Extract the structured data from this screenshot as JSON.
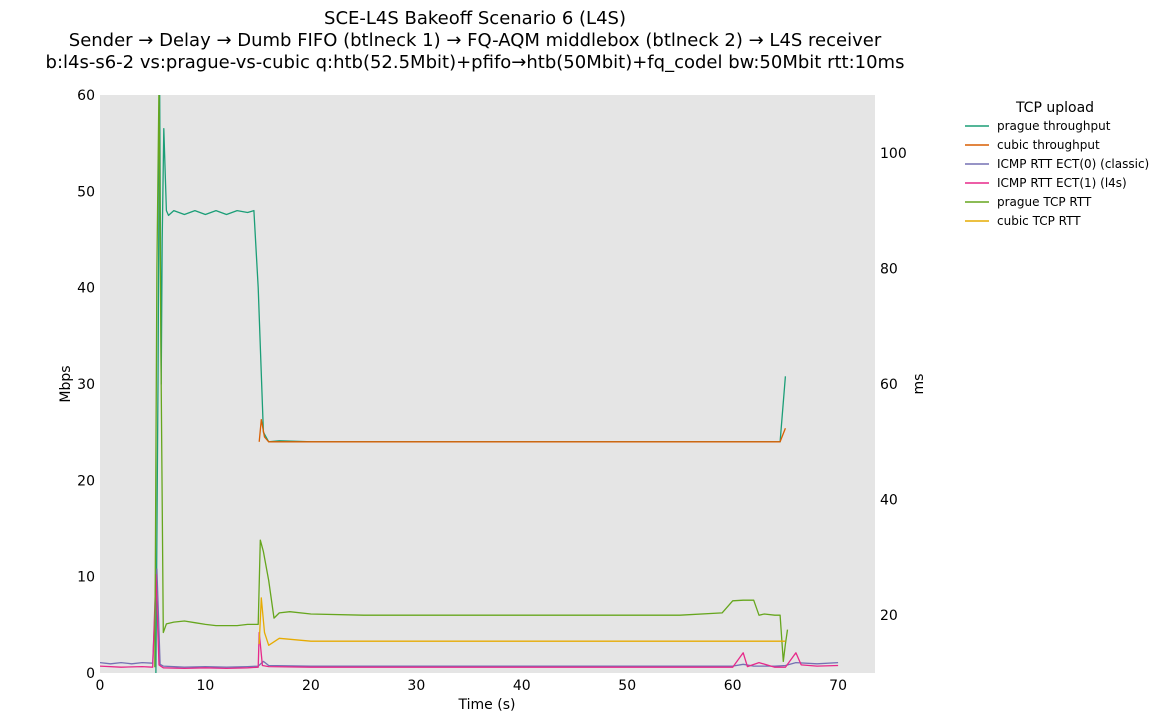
{
  "chart_data": {
    "type": "line",
    "title": [
      "SCE-L4S Bakeoff Scenario 6 (L4S)",
      "Sender → Delay → Dumb FIFO (btlneck 1) → FQ-AQM middlebox (btlneck 2) → L4S receiver",
      "b:l4s-s6-2 vs:prague-vs-cubic q:htb(52.5Mbit)+pfifo→htb(50Mbit)+fq_codel bw:50Mbit rtt:10ms"
    ],
    "xlabel": "Time (s)",
    "ylabel_left": "Mbps",
    "ylabel_right": "ms",
    "xlim": [
      0,
      73.5
    ],
    "ylim_left": [
      0,
      60
    ],
    "ylim_right": [
      10,
      110
    ],
    "xticks": [
      0,
      10,
      20,
      30,
      40,
      50,
      60,
      70
    ],
    "yticks_left": [
      0,
      10,
      20,
      30,
      40,
      50,
      60
    ],
    "yticks_right": [
      20,
      40,
      60,
      80,
      100
    ],
    "background": "#e5e5e5",
    "grid": false,
    "legend": {
      "title": "TCP upload",
      "placement": "outside-right"
    },
    "series": [
      {
        "name": "prague throughput",
        "axis": "left",
        "color": "#1b9e77",
        "points": [
          [
            5.3,
            0
          ],
          [
            5.5,
            30
          ],
          [
            5.65,
            62
          ],
          [
            5.8,
            30
          ],
          [
            5.9,
            45
          ],
          [
            6.05,
            56.5
          ],
          [
            6.3,
            48
          ],
          [
            6.5,
            47.5
          ],
          [
            7,
            48
          ],
          [
            8,
            47.6
          ],
          [
            9,
            48
          ],
          [
            10,
            47.6
          ],
          [
            11,
            48
          ],
          [
            12,
            47.6
          ],
          [
            13,
            48
          ],
          [
            14,
            47.8
          ],
          [
            14.6,
            48
          ],
          [
            15,
            40
          ],
          [
            15.5,
            25
          ],
          [
            16,
            24
          ],
          [
            17,
            24.1
          ],
          [
            20,
            24
          ],
          [
            25,
            24
          ],
          [
            30,
            24
          ],
          [
            35,
            24
          ],
          [
            40,
            24
          ],
          [
            45,
            24
          ],
          [
            50,
            24
          ],
          [
            55,
            24
          ],
          [
            60,
            24
          ],
          [
            64,
            24
          ],
          [
            64.5,
            24
          ],
          [
            65,
            30.8
          ]
        ]
      },
      {
        "name": "cubic throughput",
        "axis": "left",
        "color": "#d95f02",
        "points": [
          [
            15.1,
            24
          ],
          [
            15.3,
            26.3
          ],
          [
            15.6,
            24.5
          ],
          [
            16,
            24
          ],
          [
            17,
            24
          ],
          [
            20,
            24
          ],
          [
            25,
            24
          ],
          [
            30,
            24
          ],
          [
            35,
            24
          ],
          [
            40,
            24
          ],
          [
            45,
            24
          ],
          [
            50,
            24
          ],
          [
            55,
            24
          ],
          [
            60,
            24
          ],
          [
            64,
            24
          ],
          [
            64.5,
            24
          ],
          [
            65,
            25.4
          ]
        ]
      },
      {
        "name": "ICMP RTT ECT(0) (classic)",
        "axis": "right",
        "color": "#7570b3",
        "points": [
          [
            0,
            11.8
          ],
          [
            1,
            11.6
          ],
          [
            2,
            11.8
          ],
          [
            3,
            11.6
          ],
          [
            4,
            11.8
          ],
          [
            5,
            11.7
          ],
          [
            5.4,
            28
          ],
          [
            5.7,
            11.5
          ],
          [
            6,
            11.2
          ],
          [
            8,
            11
          ],
          [
            10,
            11.1
          ],
          [
            12,
            11
          ],
          [
            14,
            11.1
          ],
          [
            15,
            11.2
          ],
          [
            15.5,
            12
          ],
          [
            16,
            11.3
          ],
          [
            20,
            11.2
          ],
          [
            25,
            11.2
          ],
          [
            30,
            11.2
          ],
          [
            35,
            11.2
          ],
          [
            40,
            11.2
          ],
          [
            45,
            11.2
          ],
          [
            50,
            11.2
          ],
          [
            55,
            11.2
          ],
          [
            60,
            11.2
          ],
          [
            61,
            11.5
          ],
          [
            62,
            11.2
          ],
          [
            64,
            11.2
          ],
          [
            65,
            11.3
          ],
          [
            66,
            11.8
          ],
          [
            68,
            11.6
          ],
          [
            70,
            11.8
          ]
        ]
      },
      {
        "name": "ICMP RTT ECT(1) (l4s)",
        "axis": "right",
        "color": "#e7298a",
        "points": [
          [
            0,
            11.2
          ],
          [
            2,
            11
          ],
          [
            4,
            11.1
          ],
          [
            5,
            11
          ],
          [
            5.3,
            27
          ],
          [
            5.6,
            11.4
          ],
          [
            6,
            10.9
          ],
          [
            8,
            10.8
          ],
          [
            10,
            10.9
          ],
          [
            12,
            10.8
          ],
          [
            14,
            10.9
          ],
          [
            15,
            11
          ],
          [
            15.1,
            17
          ],
          [
            15.4,
            11.3
          ],
          [
            16,
            11.1
          ],
          [
            20,
            11
          ],
          [
            25,
            11
          ],
          [
            30,
            11
          ],
          [
            35,
            11
          ],
          [
            40,
            11
          ],
          [
            45,
            11
          ],
          [
            50,
            11
          ],
          [
            55,
            11
          ],
          [
            60,
            11
          ],
          [
            61,
            13.5
          ],
          [
            61.4,
            11.1
          ],
          [
            62.5,
            11.8
          ],
          [
            64,
            11
          ],
          [
            65,
            11
          ],
          [
            66,
            13.5
          ],
          [
            66.5,
            11.4
          ],
          [
            68,
            11.2
          ],
          [
            70,
            11.3
          ]
        ]
      },
      {
        "name": "prague TCP RTT",
        "axis": "right",
        "color": "#66a61e",
        "points": [
          [
            5.2,
            11
          ],
          [
            5.4,
            80
          ],
          [
            5.6,
            112
          ],
          [
            5.8,
            60
          ],
          [
            6,
            17
          ],
          [
            6.3,
            18.5
          ],
          [
            7,
            18.8
          ],
          [
            8,
            19
          ],
          [
            9,
            18.7
          ],
          [
            10,
            18.4
          ],
          [
            11,
            18.2
          ],
          [
            12,
            18.2
          ],
          [
            13,
            18.2
          ],
          [
            14,
            18.4
          ],
          [
            15,
            18.4
          ],
          [
            15.2,
            33
          ],
          [
            15.5,
            31
          ],
          [
            16,
            26
          ],
          [
            16.5,
            19.5
          ],
          [
            17,
            20.4
          ],
          [
            18,
            20.6
          ],
          [
            20,
            20.2
          ],
          [
            25,
            20
          ],
          [
            30,
            20
          ],
          [
            35,
            20
          ],
          [
            40,
            20
          ],
          [
            45,
            20
          ],
          [
            50,
            20
          ],
          [
            55,
            20
          ],
          [
            59,
            20.4
          ],
          [
            60,
            22.5
          ],
          [
            61,
            22.6
          ],
          [
            62,
            22.6
          ],
          [
            62.5,
            20
          ],
          [
            63,
            20.2
          ],
          [
            64,
            20
          ],
          [
            64.5,
            20
          ],
          [
            64.8,
            12
          ],
          [
            65,
            15
          ],
          [
            65.2,
            17.5
          ]
        ]
      },
      {
        "name": "cubic TCP RTT",
        "axis": "right",
        "color": "#e6ab02",
        "points": [
          [
            15.1,
            15
          ],
          [
            15.3,
            23
          ],
          [
            15.6,
            17
          ],
          [
            16,
            14.8
          ],
          [
            17,
            16
          ],
          [
            20,
            15.5
          ],
          [
            25,
            15.5
          ],
          [
            30,
            15.5
          ],
          [
            35,
            15.5
          ],
          [
            40,
            15.5
          ],
          [
            45,
            15.5
          ],
          [
            50,
            15.5
          ],
          [
            55,
            15.5
          ],
          [
            60,
            15.5
          ],
          [
            62,
            15.5
          ],
          [
            64,
            15.5
          ],
          [
            65,
            15.5
          ]
        ]
      }
    ]
  }
}
